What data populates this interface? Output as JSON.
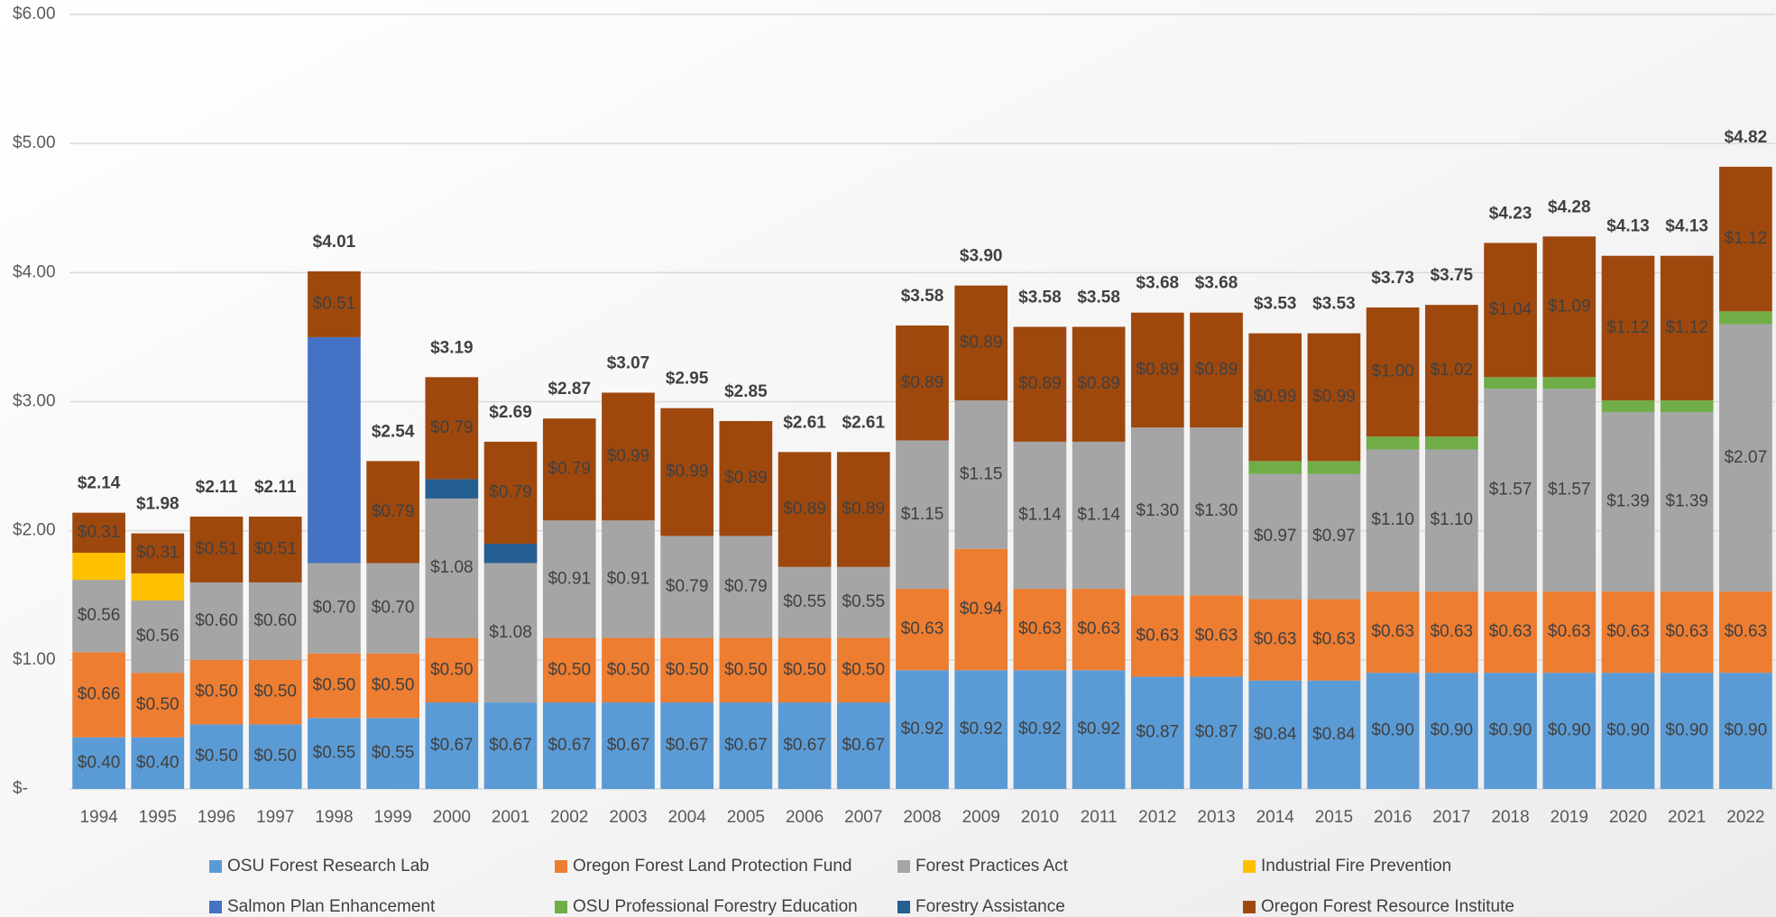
{
  "chart_data": {
    "type": "stacked_bar",
    "categories": [
      "1994",
      "1995",
      "1996",
      "1997",
      "1998",
      "1999",
      "2000",
      "2001",
      "2002",
      "2003",
      "2004",
      "2005",
      "2006",
      "2007",
      "2008",
      "2009",
      "2010",
      "2011",
      "2012",
      "2013",
      "2014",
      "2015",
      "2016",
      "2017",
      "2018",
      "2019",
      "2020",
      "2021",
      "2022"
    ],
    "series": [
      {
        "name": "OSU Forest Research Lab",
        "color": "#5b9bd5",
        "values": [
          0.4,
          0.4,
          0.5,
          0.5,
          0.55,
          0.55,
          0.67,
          0.67,
          0.67,
          0.67,
          0.67,
          0.67,
          0.67,
          0.67,
          0.92,
          0.92,
          0.92,
          0.92,
          0.87,
          0.87,
          0.84,
          0.84,
          0.9,
          0.9,
          0.9,
          0.9,
          0.9,
          0.9,
          0.9
        ],
        "value_labels": [
          "$0.40",
          "$0.40",
          "$0.50",
          "$0.50",
          "$0.55",
          "$0.55",
          "$0.67",
          "$0.67",
          "$0.67",
          "$0.67",
          "$0.67",
          "$0.67",
          "$0.67",
          "$0.67",
          "$0.92",
          "$0.92",
          "$0.92",
          "$0.92",
          "$0.87",
          "$0.87",
          "$0.84",
          "$0.84",
          "$0.90",
          "$0.90",
          "$0.90",
          "$0.90",
          "$0.90",
          "$0.90",
          "$0.90"
        ]
      },
      {
        "name": "Oregon Forest Land Protection Fund",
        "color": "#ed7d31",
        "values": [
          0.66,
          0.5,
          0.5,
          0.5,
          0.5,
          0.5,
          0.5,
          null,
          0.5,
          0.5,
          0.5,
          0.5,
          0.5,
          0.5,
          0.63,
          0.94,
          0.63,
          0.63,
          0.63,
          0.63,
          0.63,
          0.63,
          0.63,
          0.63,
          0.63,
          0.63,
          0.63,
          0.63,
          0.63
        ],
        "value_labels": [
          "$0.66",
          "$0.50",
          "$0.50",
          "$0.50",
          "$0.50",
          "$0.50",
          "$0.50",
          null,
          "$0.50",
          "$0.50",
          "$0.50",
          "$0.50",
          "$0.50",
          "$0.50",
          "$0.63",
          "$0.94",
          "$0.63",
          "$0.63",
          "$0.63",
          "$0.63",
          "$0.63",
          "$0.63",
          "$0.63",
          "$0.63",
          "$0.63",
          "$0.63",
          "$0.63",
          "$0.63",
          "$0.63"
        ]
      },
      {
        "name": "Forest Practices Act",
        "color": "#a5a5a5",
        "values": [
          0.56,
          0.56,
          0.6,
          0.6,
          0.7,
          0.7,
          1.08,
          1.08,
          0.91,
          0.91,
          0.79,
          0.79,
          0.55,
          0.55,
          1.15,
          1.15,
          1.14,
          1.14,
          1.3,
          1.3,
          0.97,
          0.97,
          1.1,
          1.1,
          1.57,
          1.57,
          1.39,
          1.39,
          2.07
        ],
        "value_labels": [
          "$0.56",
          "$0.56",
          "$0.60",
          "$0.60",
          "$0.70",
          "$0.70",
          "$1.08",
          "$1.08",
          "$0.91",
          "$0.91",
          "$0.79",
          "$0.79",
          "$0.55",
          "$0.55",
          "$1.15",
          "$1.15",
          "$1.14",
          "$1.14",
          "$1.30",
          "$1.30",
          "$0.97",
          "$0.97",
          "$1.10",
          "$1.10",
          "$1.57",
          "$1.57",
          "$1.39",
          "$1.39",
          "$2.07"
        ]
      },
      {
        "name": "Industrial Fire Prevention",
        "color": "#ffc000",
        "values": [
          0.21,
          0.21,
          null,
          null,
          null,
          null,
          null,
          null,
          null,
          null,
          null,
          null,
          null,
          null,
          null,
          null,
          null,
          null,
          null,
          null,
          null,
          null,
          null,
          null,
          null,
          null,
          null,
          null,
          null
        ]
      },
      {
        "name": "Salmon Plan Enhancement",
        "color": "#4472c4",
        "values": [
          null,
          null,
          null,
          null,
          1.75,
          null,
          null,
          null,
          null,
          null,
          null,
          null,
          null,
          null,
          null,
          null,
          null,
          null,
          null,
          null,
          null,
          null,
          null,
          null,
          null,
          null,
          null,
          null,
          null
        ]
      },
      {
        "name": "OSU Professional Forestry Education",
        "color": "#70ad47",
        "values": [
          null,
          null,
          null,
          null,
          null,
          null,
          null,
          null,
          null,
          null,
          null,
          null,
          null,
          null,
          null,
          null,
          null,
          null,
          null,
          null,
          0.1,
          0.1,
          0.1,
          0.1,
          0.09,
          0.09,
          0.09,
          0.09,
          0.1
        ]
      },
      {
        "name": "Forestry Assistance",
        "color": "#255e91",
        "values": [
          null,
          null,
          null,
          null,
          null,
          null,
          0.15,
          0.15,
          null,
          null,
          null,
          null,
          null,
          null,
          null,
          null,
          null,
          null,
          null,
          null,
          null,
          null,
          null,
          null,
          null,
          null,
          null,
          null,
          null
        ]
      },
      {
        "name": "Oregon Forest Resource Institute",
        "color": "#9e480e",
        "values": [
          0.31,
          0.31,
          0.51,
          0.51,
          0.51,
          0.79,
          0.79,
          0.79,
          0.79,
          0.99,
          0.99,
          0.89,
          0.89,
          0.89,
          0.89,
          0.89,
          0.89,
          0.89,
          0.89,
          0.89,
          0.99,
          0.99,
          1.0,
          1.02,
          1.04,
          1.09,
          1.12,
          1.12,
          1.12
        ],
        "value_labels": [
          "$0.31",
          "$0.31",
          "$0.51",
          "$0.51",
          "$0.51",
          "$0.79",
          "$0.79",
          "$0.79",
          "$0.79",
          "$0.99",
          "$0.99",
          "$0.89",
          "$0.89",
          "$0.89",
          "$0.89",
          "$0.89",
          "$0.89",
          "$0.89",
          "$0.89",
          "$0.89",
          "$0.99",
          "$0.99",
          "$1.00",
          "$1.02",
          "$1.04",
          "$1.09",
          "$1.12",
          "$1.12",
          "$1.12"
        ]
      }
    ],
    "totals": {
      "values": [
        2.14,
        1.98,
        2.11,
        2.11,
        4.01,
        2.54,
        3.19,
        2.69,
        2.87,
        3.07,
        2.95,
        2.85,
        2.61,
        2.61,
        3.58,
        3.9,
        3.58,
        3.58,
        3.68,
        3.68,
        3.53,
        3.53,
        3.73,
        3.75,
        4.23,
        4.28,
        4.13,
        4.13,
        4.82
      ],
      "value_labels": [
        "$2.14",
        "$1.98",
        "$2.11",
        "$2.11",
        "$4.01",
        "$2.54",
        "$3.19",
        "$2.69",
        "$2.87",
        "$3.07",
        "$2.95",
        "$2.85",
        "$2.61",
        "$2.61",
        "$3.58",
        "$3.90",
        "$3.58",
        "$3.58",
        "$3.68",
        "$3.68",
        "$3.53",
        "$3.53",
        "$3.73",
        "$3.75",
        "$4.23",
        "$4.28",
        "$4.13",
        "$4.13",
        "$4.82"
      ]
    },
    "ylim": [
      0,
      6
    ],
    "yticks": [
      {
        "value": 0,
        "label": "$-"
      },
      {
        "value": 1,
        "label": "$1.00"
      },
      {
        "value": 2,
        "label": "$2.00"
      },
      {
        "value": 3,
        "label": "$3.00"
      },
      {
        "value": 4,
        "label": "$4.00"
      },
      {
        "value": 5,
        "label": "$5.00"
      },
      {
        "value": 6,
        "label": "$6.00"
      }
    ],
    "grid": true,
    "legend": "bottom"
  }
}
